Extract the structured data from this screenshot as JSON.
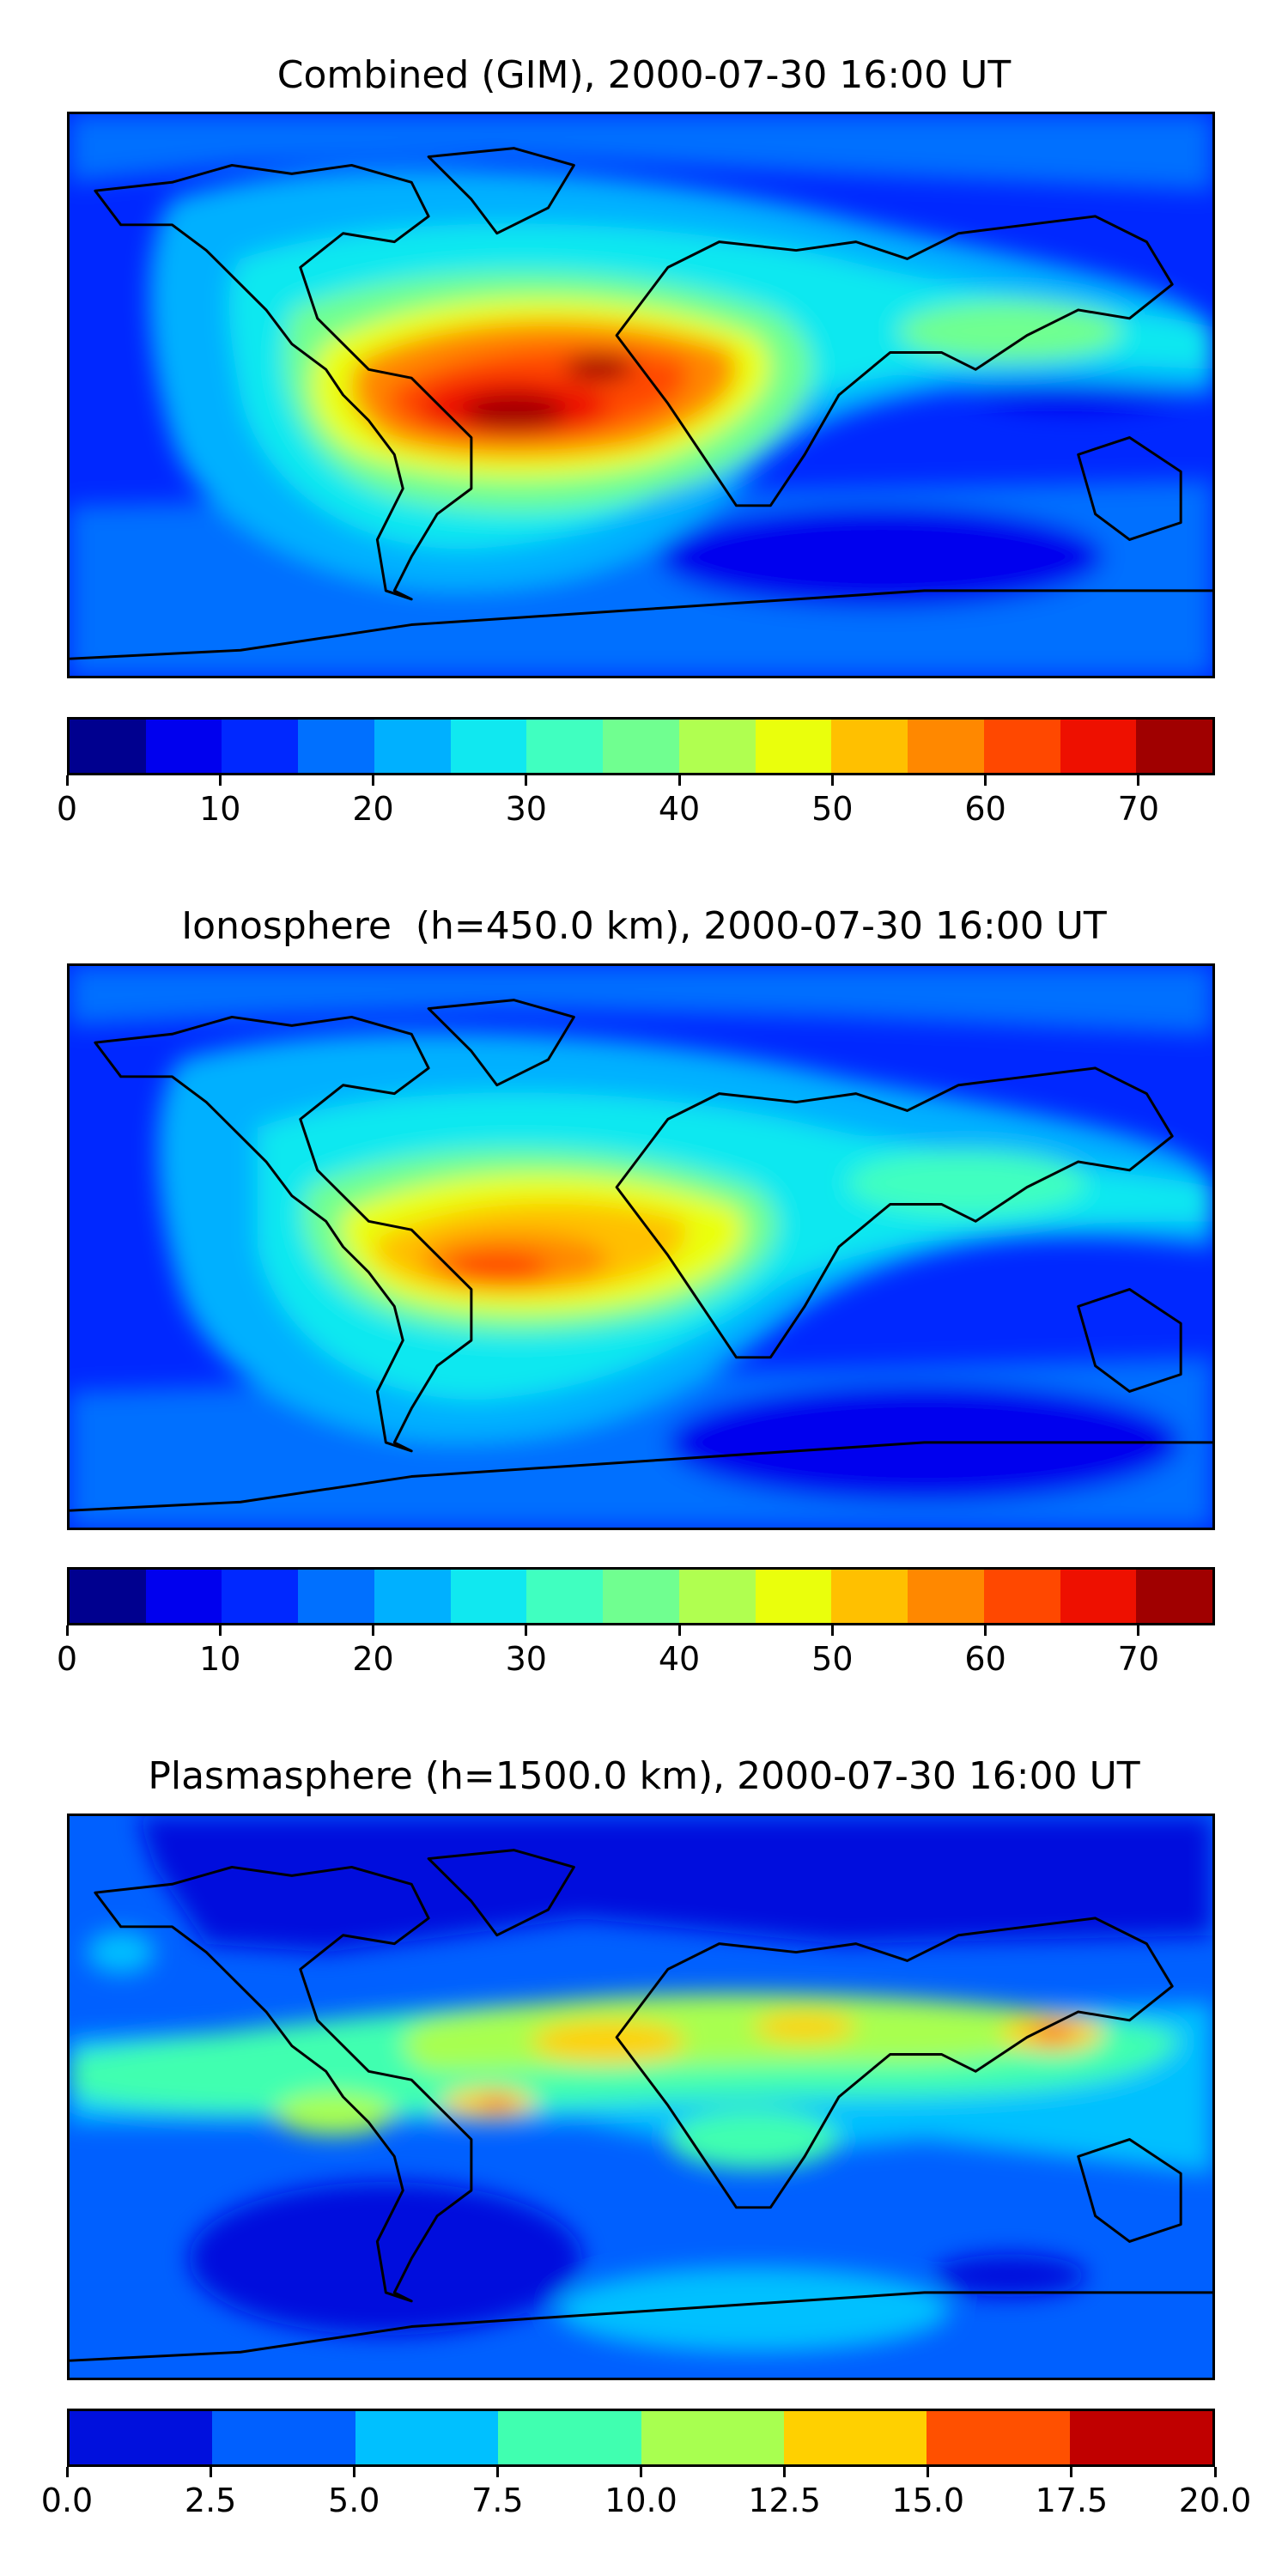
{
  "panels": [
    {
      "title": "Combined (GIM), 2000-07-30 16:00 UT",
      "levels": [
        0,
        5,
        10,
        15,
        20,
        25,
        30,
        35,
        40,
        45,
        50,
        55,
        60,
        65,
        70,
        75
      ],
      "ticks": [
        "0",
        "10",
        "20",
        "30",
        "40",
        "50",
        "60",
        "70"
      ],
      "tick_values": [
        0,
        10,
        20,
        30,
        40,
        50,
        60,
        70
      ],
      "colors": [
        "#00008f",
        "#0000ee",
        "#0028ff",
        "#0070ff",
        "#00b0ff",
        "#10e8f0",
        "#40ffc0",
        "#70ff90",
        "#b0ff50",
        "#eaff0c",
        "#ffc000",
        "#ff8800",
        "#ff4800",
        "#ee1000",
        "#a00000"
      ]
    },
    {
      "title": "Ionosphere  (h=450.0 km), 2000-07-30 16:00 UT",
      "levels": [
        0,
        5,
        10,
        15,
        20,
        25,
        30,
        35,
        40,
        45,
        50,
        55,
        60,
        65,
        70,
        75
      ],
      "ticks": [
        "0",
        "10",
        "20",
        "30",
        "40",
        "50",
        "60",
        "70"
      ],
      "tick_values": [
        0,
        10,
        20,
        30,
        40,
        50,
        60,
        70
      ],
      "colors": [
        "#00008f",
        "#0000ee",
        "#0028ff",
        "#0070ff",
        "#00b0ff",
        "#10e8f0",
        "#40ffc0",
        "#70ff90",
        "#b0ff50",
        "#eaff0c",
        "#ffc000",
        "#ff8800",
        "#ff4800",
        "#ee1000",
        "#a00000"
      ]
    },
    {
      "title": "Plasmasphere (h=1500.0 km), 2000-07-30 16:00 UT",
      "levels": [
        0.0,
        2.5,
        5.0,
        7.5,
        10.0,
        12.5,
        15.0,
        17.5,
        20.0
      ],
      "ticks": [
        "0.0",
        "2.5",
        "5.0",
        "7.5",
        "10.0",
        "12.5",
        "15.0",
        "17.5",
        "20.0"
      ],
      "tick_values": [
        0.0,
        2.5,
        5.0,
        7.5,
        10.0,
        12.5,
        15.0,
        17.5,
        20.0
      ],
      "colors": [
        "#0010dd",
        "#0060ff",
        "#00c0ff",
        "#40ffb0",
        "#a8ff50",
        "#ffd000",
        "#ff5000",
        "#c00000"
      ]
    }
  ]
}
